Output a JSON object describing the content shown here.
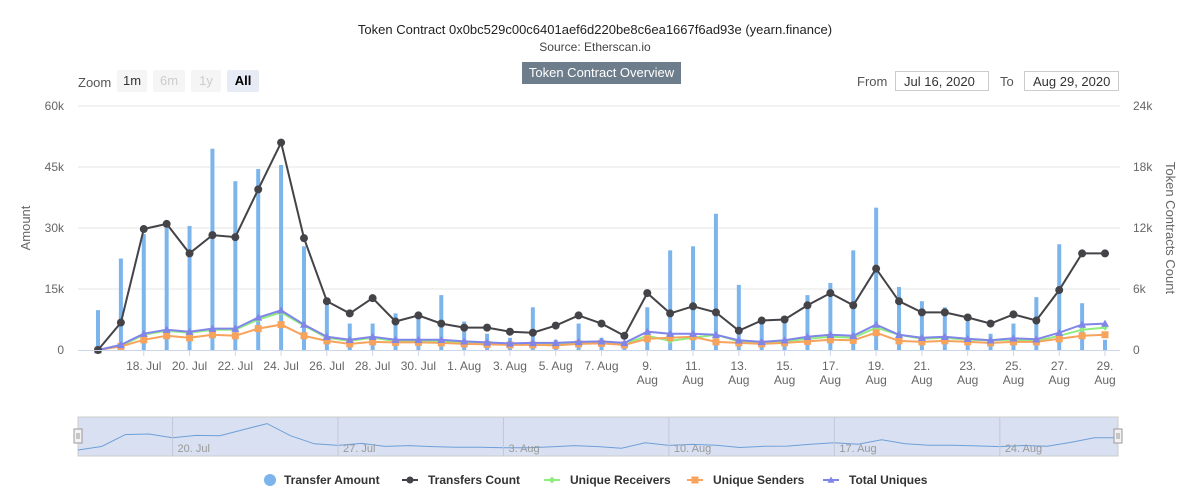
{
  "title": "Token Contract 0x0bc529c00c6401aef6d220be8c6ea1667f6ad93e (yearn.finance)",
  "subtitle": "Source: Etherscan.io",
  "overview_button": "Token Contract Overview",
  "zoom": {
    "label": "Zoom",
    "buttons": [
      "1m",
      "6m",
      "1y",
      "All"
    ],
    "selected": "All"
  },
  "range": {
    "from_label": "From",
    "from_value": "Jul 16, 2020",
    "to_label": "To",
    "to_value": "Aug 29, 2020"
  },
  "navigator_labels": [
    "20. Jul",
    "27. Jul",
    "3. Aug",
    "10. Aug",
    "17. Aug",
    "24. Aug"
  ],
  "colors": {
    "amount": "#7cb5ec",
    "count": "#434348",
    "receivers": "#90ed7d",
    "senders": "#f7a35c",
    "uniques": "#8085e9",
    "navigator_fill": "#d0d8ee"
  },
  "chart_data": {
    "type": "line",
    "x_labels": [
      "18. Jul",
      "20. Jul",
      "22. Jul",
      "24. Jul",
      "26. Jul",
      "28. Jul",
      "30. Jul",
      "1. Aug",
      "3. Aug",
      "5. Aug",
      "7. Aug",
      "9. Aug",
      "11. Aug",
      "13. Aug",
      "15. Aug",
      "17. Aug",
      "19. Aug",
      "21. Aug",
      "23. Aug",
      "25. Aug",
      "27. Aug",
      "29. Aug"
    ],
    "x_dates": [
      "Jul 16",
      "Jul 17",
      "Jul 18",
      "Jul 19",
      "Jul 20",
      "Jul 21",
      "Jul 22",
      "Jul 23",
      "Jul 24",
      "Jul 25",
      "Jul 26",
      "Jul 27",
      "Jul 28",
      "Jul 29",
      "Jul 30",
      "Jul 31",
      "Aug 1",
      "Aug 2",
      "Aug 3",
      "Aug 4",
      "Aug 5",
      "Aug 6",
      "Aug 7",
      "Aug 8",
      "Aug 9",
      "Aug 10",
      "Aug 11",
      "Aug 12",
      "Aug 13",
      "Aug 14",
      "Aug 15",
      "Aug 16",
      "Aug 17",
      "Aug 18",
      "Aug 19",
      "Aug 20",
      "Aug 21",
      "Aug 22",
      "Aug 23",
      "Aug 24",
      "Aug 25",
      "Aug 26",
      "Aug 27",
      "Aug 28",
      "Aug 29"
    ],
    "y_left": {
      "label": "Amount",
      "min": 0,
      "max": 60000,
      "ticks": [
        "0",
        "15k",
        "30k",
        "45k",
        "60k"
      ]
    },
    "y_right": {
      "label": "Token Contracts Count",
      "min": 0,
      "max": 24000,
      "ticks": [
        "0",
        "6k",
        "12k",
        "18k",
        "24k"
      ]
    },
    "grid": true,
    "legend_position": "bottom",
    "series": [
      {
        "name": "Transfer Amount",
        "axis": "left",
        "kind": "column",
        "values": [
          9800,
          22500,
          28500,
          30000,
          30500,
          49500,
          41500,
          44500,
          45500,
          25500,
          12000,
          6500,
          6500,
          9000,
          8000,
          13500,
          7000,
          4000,
          3000,
          10500,
          2500,
          6500,
          3000,
          2000,
          10500,
          24500,
          25500,
          33500,
          16000,
          6500,
          8000,
          13500,
          16500,
          24500,
          35000,
          15500,
          12000,
          10500,
          7000,
          4000,
          6500,
          13000,
          26000,
          11500,
          2500
        ]
      },
      {
        "name": "Transfers Count",
        "axis": "right",
        "values": [
          0,
          2700,
          11900,
          12400,
          9500,
          11300,
          11100,
          15800,
          20400,
          11000,
          4800,
          3600,
          5100,
          2800,
          3400,
          2600,
          2200,
          2200,
          1800,
          1700,
          2400,
          3400,
          2600,
          1400,
          5600,
          3600,
          4300,
          3700,
          1900,
          2900,
          3000,
          4400,
          5600,
          4400,
          8000,
          4800,
          3700,
          3700,
          3200,
          2600,
          3500,
          2900,
          5900,
          9500,
          9500
        ]
      },
      {
        "name": "Unique Receivers",
        "axis": "right",
        "values": [
          0,
          400,
          1500,
          1900,
          1700,
          2000,
          2000,
          3000,
          3700,
          2400,
          1200,
          900,
          1200,
          900,
          900,
          900,
          700,
          650,
          600,
          650,
          550,
          650,
          700,
          600,
          1400,
          900,
          1200,
          1500,
          850,
          750,
          850,
          1100,
          1300,
          1200,
          2200,
          1500,
          1100,
          1200,
          1000,
          950,
          1000,
          900,
          1400,
          2000,
          2200
        ]
      },
      {
        "name": "Unique Senders",
        "axis": "right",
        "values": [
          0,
          350,
          1000,
          1400,
          1200,
          1500,
          1400,
          2100,
          2500,
          1400,
          900,
          600,
          800,
          750,
          750,
          700,
          600,
          550,
          500,
          500,
          450,
          600,
          650,
          500,
          1100,
          1200,
          1300,
          800,
          700,
          600,
          700,
          850,
          1000,
          950,
          1700,
          900,
          800,
          900,
          800,
          700,
          800,
          800,
          1100,
          1400,
          1500
        ]
      },
      {
        "name": "Total Uniques",
        "axis": "right",
        "values": [
          0,
          500,
          1600,
          2000,
          1800,
          2100,
          2100,
          3200,
          3900,
          2500,
          1300,
          1000,
          1300,
          1000,
          1000,
          1000,
          850,
          750,
          650,
          700,
          700,
          800,
          850,
          700,
          1800,
          1600,
          1600,
          1500,
          950,
          800,
          950,
          1300,
          1500,
          1400,
          2500,
          1500,
          1200,
          1300,
          1100,
          950,
          1150,
          1050,
          1700,
          2500,
          2600
        ]
      }
    ]
  }
}
